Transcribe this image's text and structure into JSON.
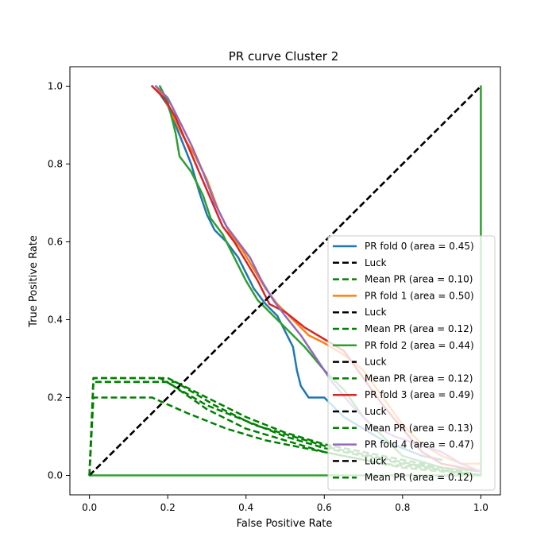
{
  "chart_data": {
    "type": "line",
    "title": "PR curve Cluster 2",
    "xlabel": "False Positive Rate",
    "ylabel": "True Positive Rate",
    "xlim": [
      -0.05,
      1.05
    ],
    "ylim": [
      -0.05,
      1.05
    ],
    "xticks": [
      "0.0",
      "0.2",
      "0.4",
      "0.6",
      "0.8",
      "1.0"
    ],
    "yticks": [
      "0.0",
      "0.2",
      "0.4",
      "0.6",
      "0.8",
      "1.0"
    ],
    "grid": false,
    "legend_position": "lower right",
    "series": [
      {
        "name": "PR fold 0 (area = 0.45)",
        "color": "#1f77b4",
        "style": "solid",
        "points": [
          [
            0.16,
            1.0
          ],
          [
            0.18,
            0.98
          ],
          [
            0.2,
            0.95
          ],
          [
            0.22,
            0.9
          ],
          [
            0.24,
            0.85
          ],
          [
            0.26,
            0.8
          ],
          [
            0.28,
            0.73
          ],
          [
            0.3,
            0.67
          ],
          [
            0.32,
            0.63
          ],
          [
            0.35,
            0.6
          ],
          [
            0.38,
            0.56
          ],
          [
            0.4,
            0.52
          ],
          [
            0.42,
            0.48
          ],
          [
            0.45,
            0.44
          ],
          [
            0.48,
            0.41
          ],
          [
            0.5,
            0.37
          ],
          [
            0.52,
            0.33
          ],
          [
            0.53,
            0.27
          ],
          [
            0.54,
            0.23
          ],
          [
            0.56,
            0.2
          ],
          [
            0.6,
            0.2
          ],
          [
            0.65,
            0.15
          ],
          [
            0.7,
            0.12
          ],
          [
            0.75,
            0.09
          ],
          [
            0.8,
            0.07
          ],
          [
            0.85,
            0.05
          ],
          [
            0.9,
            0.04
          ]
        ]
      },
      {
        "name": "Luck",
        "color": "#000000",
        "style": "dashed",
        "points": [
          [
            0,
            0
          ],
          [
            1,
            1
          ]
        ]
      },
      {
        "name": "Mean PR (area = 0.10)",
        "color": "#008000",
        "style": "dashed",
        "points": [
          [
            0,
            0
          ],
          [
            0.01,
            0.24
          ],
          [
            0.2,
            0.24
          ],
          [
            0.3,
            0.17
          ],
          [
            0.4,
            0.12
          ],
          [
            0.5,
            0.09
          ],
          [
            0.6,
            0.06
          ],
          [
            0.7,
            0.04
          ],
          [
            0.8,
            0.02
          ],
          [
            0.9,
            0.01
          ],
          [
            1.0,
            0
          ]
        ]
      },
      {
        "name": "PR fold 1 (area = 0.50)",
        "color": "#ff7f0e",
        "style": "solid",
        "points": [
          [
            0.17,
            1.0
          ],
          [
            0.19,
            0.97
          ],
          [
            0.21,
            0.93
          ],
          [
            0.24,
            0.87
          ],
          [
            0.27,
            0.82
          ],
          [
            0.3,
            0.76
          ],
          [
            0.33,
            0.68
          ],
          [
            0.36,
            0.62
          ],
          [
            0.39,
            0.58
          ],
          [
            0.42,
            0.53
          ],
          [
            0.45,
            0.48
          ],
          [
            0.48,
            0.44
          ],
          [
            0.52,
            0.4
          ],
          [
            0.56,
            0.36
          ],
          [
            0.6,
            0.34
          ],
          [
            0.65,
            0.31
          ],
          [
            0.7,
            0.27
          ],
          [
            0.75,
            0.2
          ],
          [
            0.8,
            0.13
          ],
          [
            0.85,
            0.08
          ],
          [
            0.9,
            0.05
          ],
          [
            0.95,
            0.03
          ],
          [
            1.0,
            0.03
          ]
        ]
      },
      {
        "name": "Mean PR (area = 0.12)",
        "color": "#008000",
        "style": "dashed",
        "points": [
          [
            0,
            0
          ],
          [
            0.01,
            0.25
          ],
          [
            0.18,
            0.25
          ],
          [
            0.3,
            0.18
          ],
          [
            0.4,
            0.14
          ],
          [
            0.5,
            0.1
          ],
          [
            0.6,
            0.07
          ],
          [
            0.7,
            0.05
          ],
          [
            0.8,
            0.03
          ],
          [
            0.9,
            0.02
          ],
          [
            1.0,
            0
          ]
        ]
      },
      {
        "name": "PR fold 2 (area = 0.44)",
        "color": "#2ca02c",
        "style": "solid",
        "points": [
          [
            0.18,
            1.0
          ],
          [
            0.2,
            0.96
          ],
          [
            0.22,
            0.88
          ],
          [
            0.23,
            0.82
          ],
          [
            0.26,
            0.78
          ],
          [
            0.29,
            0.72
          ],
          [
            0.31,
            0.66
          ],
          [
            0.34,
            0.62
          ],
          [
            0.37,
            0.56
          ],
          [
            0.4,
            0.5
          ],
          [
            0.43,
            0.45
          ],
          [
            0.46,
            0.42
          ],
          [
            0.5,
            0.38
          ],
          [
            0.55,
            0.33
          ],
          [
            0.6,
            0.27
          ],
          [
            0.65,
            0.22
          ],
          [
            0.7,
            0.15
          ],
          [
            0.75,
            0.1
          ],
          [
            0.8,
            0.05
          ],
          [
            0.9,
            0.02
          ],
          [
            1.0,
            0.01
          ],
          [
            1.0,
            1.0
          ],
          [
            1.0,
            0.0
          ],
          [
            0.0,
            0.0
          ]
        ]
      },
      {
        "name": "Mean PR (area = 0.12)",
        "color": "#008000",
        "style": "dashed",
        "points": [
          [
            0,
            0
          ],
          [
            0.01,
            0.2
          ],
          [
            0.16,
            0.2
          ],
          [
            0.25,
            0.16
          ],
          [
            0.35,
            0.12
          ],
          [
            0.45,
            0.09
          ],
          [
            0.55,
            0.07
          ],
          [
            0.65,
            0.05
          ],
          [
            0.75,
            0.03
          ],
          [
            0.85,
            0.02
          ],
          [
            1.0,
            0
          ]
        ]
      },
      {
        "name": "PR fold 3 (area = 0.49)",
        "color": "#d62728",
        "style": "solid",
        "points": [
          [
            0.16,
            1.0
          ],
          [
            0.19,
            0.97
          ],
          [
            0.22,
            0.92
          ],
          [
            0.25,
            0.85
          ],
          [
            0.28,
            0.78
          ],
          [
            0.31,
            0.71
          ],
          [
            0.34,
            0.64
          ],
          [
            0.37,
            0.6
          ],
          [
            0.4,
            0.55
          ],
          [
            0.43,
            0.5
          ],
          [
            0.46,
            0.44
          ],
          [
            0.5,
            0.42
          ],
          [
            0.55,
            0.38
          ],
          [
            0.6,
            0.35
          ],
          [
            0.65,
            0.32
          ],
          [
            0.7,
            0.25
          ],
          [
            0.75,
            0.18
          ],
          [
            0.8,
            0.12
          ],
          [
            0.85,
            0.06
          ],
          [
            0.9,
            0.03
          ],
          [
            0.95,
            0.02
          ],
          [
            1.0,
            0.01
          ]
        ]
      },
      {
        "name": "Mean PR (area = 0.13)",
        "color": "#008000",
        "style": "dashed",
        "points": [
          [
            0,
            0
          ],
          [
            0.01,
            0.25
          ],
          [
            0.2,
            0.25
          ],
          [
            0.3,
            0.2
          ],
          [
            0.4,
            0.15
          ],
          [
            0.5,
            0.11
          ],
          [
            0.6,
            0.08
          ],
          [
            0.7,
            0.06
          ],
          [
            0.8,
            0.04
          ],
          [
            0.9,
            0.02
          ],
          [
            1.0,
            0
          ]
        ]
      },
      {
        "name": "PR fold 4 (area = 0.47)",
        "color": "#9467bd",
        "style": "solid",
        "points": [
          [
            0.17,
            1.0
          ],
          [
            0.2,
            0.97
          ],
          [
            0.23,
            0.91
          ],
          [
            0.26,
            0.85
          ],
          [
            0.29,
            0.78
          ],
          [
            0.32,
            0.7
          ],
          [
            0.35,
            0.64
          ],
          [
            0.38,
            0.6
          ],
          [
            0.41,
            0.56
          ],
          [
            0.44,
            0.5
          ],
          [
            0.47,
            0.45
          ],
          [
            0.5,
            0.41
          ],
          [
            0.54,
            0.36
          ],
          [
            0.58,
            0.3
          ],
          [
            0.62,
            0.24
          ],
          [
            0.67,
            0.18
          ],
          [
            0.72,
            0.13
          ],
          [
            0.78,
            0.1
          ],
          [
            0.84,
            0.08
          ],
          [
            0.9,
            0.06
          ],
          [
            0.95,
            0.03
          ],
          [
            1.0,
            0.01
          ]
        ]
      },
      {
        "name": "Luck",
        "color": "#000000",
        "style": "dashed",
        "points": [
          [
            0,
            0
          ],
          [
            1,
            1
          ]
        ]
      },
      {
        "name": "Mean PR (area = 0.12)",
        "color": "#008000",
        "style": "dashed",
        "points": [
          [
            0,
            0
          ],
          [
            0.01,
            0.24
          ],
          [
            0.22,
            0.24
          ],
          [
            0.32,
            0.18
          ],
          [
            0.42,
            0.13
          ],
          [
            0.52,
            0.1
          ],
          [
            0.62,
            0.07
          ],
          [
            0.72,
            0.05
          ],
          [
            0.82,
            0.03
          ],
          [
            0.92,
            0.01
          ],
          [
            1.0,
            0
          ]
        ]
      }
    ],
    "legend": [
      {
        "label": "PR fold 0 (area = 0.45)",
        "color": "#1f77b4",
        "style": "solid"
      },
      {
        "label": "Luck",
        "color": "#000000",
        "style": "dashed"
      },
      {
        "label": "Mean PR (area = 0.10)",
        "color": "#008000",
        "style": "dashed"
      },
      {
        "label": "PR fold 1 (area = 0.50)",
        "color": "#ff7f0e",
        "style": "solid"
      },
      {
        "label": "Luck",
        "color": "#000000",
        "style": "dashed"
      },
      {
        "label": "Mean PR (area = 0.12)",
        "color": "#008000",
        "style": "dashed"
      },
      {
        "label": "PR fold 2 (area = 0.44)",
        "color": "#2ca02c",
        "style": "solid"
      },
      {
        "label": "Luck",
        "color": "#000000",
        "style": "dashed"
      },
      {
        "label": "Mean PR (area = 0.12)",
        "color": "#008000",
        "style": "dashed"
      },
      {
        "label": "PR fold 3 (area = 0.49)",
        "color": "#d62728",
        "style": "solid"
      },
      {
        "label": "Luck",
        "color": "#000000",
        "style": "dashed"
      },
      {
        "label": "Mean PR (area = 0.13)",
        "color": "#008000",
        "style": "dashed"
      },
      {
        "label": "PR fold 4 (area = 0.47)",
        "color": "#9467bd",
        "style": "solid"
      },
      {
        "label": "Luck",
        "color": "#000000",
        "style": "dashed"
      },
      {
        "label": "Mean PR (area = 0.12)",
        "color": "#008000",
        "style": "dashed"
      }
    ]
  }
}
